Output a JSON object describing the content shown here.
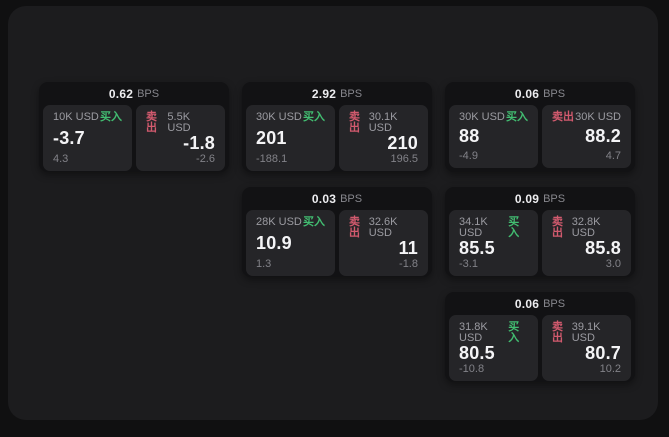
{
  "labels": {
    "bps_suffix": "BPS",
    "buy": "买入",
    "sell": "卖出"
  },
  "colors": {
    "buy": "#42bd71",
    "sell": "#d25a6e",
    "panel_background": "#1c1c1e",
    "card_background": "#121214",
    "quote_background": "#252528"
  },
  "cards": [
    {
      "bps": "0.62",
      "row": 1,
      "col": 1,
      "buy": {
        "size": "10K USD",
        "value": "-3.7",
        "sub": "4.3"
      },
      "sell": {
        "size": "5.5K USD",
        "value": "-1.8",
        "sub": "-2.6"
      }
    },
    {
      "bps": "2.92",
      "row": 1,
      "col": 2,
      "buy": {
        "size": "30K USD",
        "value": "201",
        "sub": "-188.1"
      },
      "sell": {
        "size": "30.1K USD",
        "value": "210",
        "sub": "196.5"
      }
    },
    {
      "bps": "0.06",
      "row": 1,
      "col": 3,
      "buy": {
        "size": "30K USD",
        "value": "88",
        "sub": "-4.9"
      },
      "sell": {
        "size": "30K USD",
        "value": "88.2",
        "sub": "4.7"
      }
    },
    {
      "bps": "0.03",
      "row": 2,
      "col": 2,
      "buy": {
        "size": "28K USD",
        "value": "10.9",
        "sub": "1.3"
      },
      "sell": {
        "size": "32.6K USD",
        "value": "11",
        "sub": "-1.8"
      }
    },
    {
      "bps": "0.09",
      "row": 2,
      "col": 3,
      "buy": {
        "size": "34.1K USD",
        "value": "85.5",
        "sub": "-3.1"
      },
      "sell": {
        "size": "32.8K USD",
        "value": "85.8",
        "sub": "3.0"
      }
    },
    {
      "bps": "0.06",
      "row": 3,
      "col": 3,
      "buy": {
        "size": "31.8K USD",
        "value": "80.5",
        "sub": "-10.8"
      },
      "sell": {
        "size": "39.1K USD",
        "value": "80.7",
        "sub": "10.2"
      }
    }
  ]
}
